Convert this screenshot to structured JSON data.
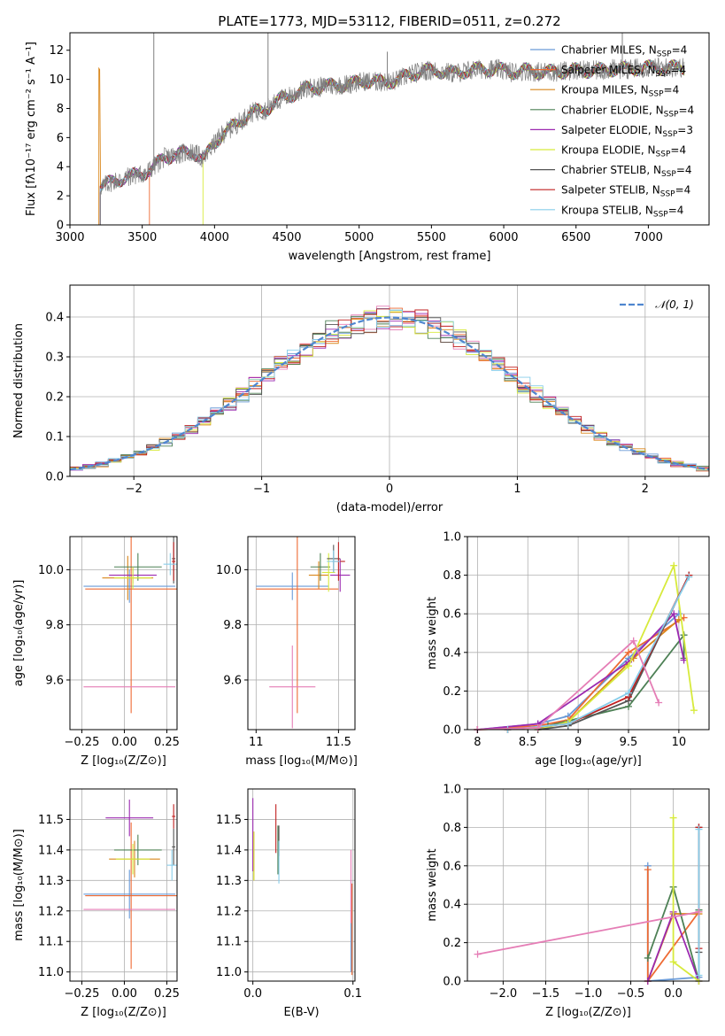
{
  "chart_data": [
    {
      "panel": "spectrum",
      "type": "line",
      "title": "PLATE=1773, MJD=53112, FIBERID=0511, z=0.272",
      "xlabel": "wavelength [Angstrom, rest frame]",
      "ylabel": "Flux [fλ10⁻¹⁷ erg cm⁻² s⁻¹ A⁻¹]",
      "xlim": [
        3000,
        7420
      ],
      "ylim": [
        0,
        13.2
      ],
      "xticks": [
        3000,
        3500,
        4000,
        4500,
        5000,
        5500,
        6000,
        6500,
        7000
      ],
      "yticks": [
        0,
        2,
        4,
        6,
        8,
        10,
        12
      ],
      "grid": false,
      "legend_loc": "right",
      "data_curve": {
        "name": "data",
        "color": "#808080",
        "start": 3210,
        "end": 7250,
        "points": [
          [
            3210,
            2.6
          ],
          [
            3300,
            3.0
          ],
          [
            3400,
            3.3
          ],
          [
            3500,
            3.5
          ],
          [
            3570,
            3.9
          ],
          [
            3650,
            4.6
          ],
          [
            3750,
            4.9
          ],
          [
            3850,
            5.0
          ],
          [
            3930,
            4.5
          ],
          [
            3970,
            5.2
          ],
          [
            4050,
            6.2
          ],
          [
            4150,
            6.9
          ],
          [
            4250,
            7.7
          ],
          [
            4350,
            7.9
          ],
          [
            4450,
            8.6
          ],
          [
            4550,
            9.0
          ],
          [
            4650,
            9.4
          ],
          [
            4750,
            9.5
          ],
          [
            4850,
            9.6
          ],
          [
            4950,
            9.7
          ],
          [
            5050,
            9.9
          ],
          [
            5150,
            9.8
          ],
          [
            5250,
            9.9
          ],
          [
            5350,
            10.3
          ],
          [
            5450,
            10.6
          ],
          [
            5550,
            10.6
          ],
          [
            5650,
            10.4
          ],
          [
            5750,
            10.6
          ],
          [
            5850,
            10.7
          ],
          [
            5950,
            10.7
          ],
          [
            6050,
            10.5
          ],
          [
            6150,
            10.6
          ],
          [
            6250,
            10.5
          ],
          [
            6350,
            10.5
          ],
          [
            6450,
            10.6
          ],
          [
            6550,
            10.6
          ],
          [
            6650,
            10.6
          ],
          [
            6750,
            10.7
          ],
          [
            6850,
            10.7
          ],
          [
            6950,
            10.8
          ],
          [
            7050,
            10.8
          ],
          [
            7150,
            10.8
          ],
          [
            7250,
            10.8
          ]
        ],
        "spikes": [
          [
            3580,
            14
          ],
          [
            4370,
            14
          ],
          [
            5195,
            11.9
          ],
          [
            6820,
            14
          ]
        ]
      },
      "model_starts": [
        3210,
        3550,
        3200,
        3210,
        3210,
        3920,
        3210,
        3210,
        3210
      ]
    },
    {
      "panel": "residual-histogram",
      "type": "line",
      "xlabel": "(data-model)/error",
      "ylabel": "Normed distribution",
      "xlim": [
        -2.5,
        2.5
      ],
      "ylim": [
        0,
        0.48
      ],
      "xticks": [
        -2,
        -1,
        0,
        1,
        2
      ],
      "yticks": [
        0.0,
        0.1,
        0.2,
        0.3,
        0.4
      ],
      "grid": true,
      "legend_loc": "upper right",
      "gaussian": {
        "name": "𝒩(0, 1)",
        "mu": 0,
        "sigma": 1
      },
      "bin_width": 0.1,
      "bin_start": -2.5
    },
    {
      "panel": "age-vs-Z",
      "type": "scatter",
      "xlabel": "Z [log₁₀(Z/Z⊙)]",
      "ylabel": "age  [log₁₀(age/yr)]",
      "xlim": [
        -0.32,
        0.31
      ],
      "ylim": [
        9.42,
        10.12
      ],
      "xticks": [
        -0.25,
        0.0,
        0.25
      ],
      "xticklabels": [
        "−0.25",
        "0.00",
        "0.25"
      ],
      "yticks": [
        9.6,
        9.8,
        10.0
      ],
      "grid": true,
      "points": [
        {
          "model": 0,
          "x": 0.03,
          "y": 9.94,
          "xerr": 0.27,
          "yerr": 0.06
        },
        {
          "model": 1,
          "x": 0.04,
          "y": 9.93,
          "xerr": 0.27,
          "yerr": 0.45
        },
        {
          "model": 2,
          "x": 0.02,
          "y": 9.97,
          "xerr": 0.15,
          "yerr": 0.08
        },
        {
          "model": 3,
          "x": 0.08,
          "y": 10.01,
          "xerr": 0.14,
          "yerr": 0.05
        },
        {
          "model": 4,
          "x": 0.05,
          "y": 9.98,
          "xerr": 0.14,
          "yerr": 0.03
        },
        {
          "model": 5,
          "x": 0.05,
          "y": 9.97,
          "xerr": 0.11,
          "yerr": 0.04
        },
        {
          "model": 6,
          "x": 0.29,
          "y": 10.04,
          "xerr": 0.01,
          "yerr": 0.09
        },
        {
          "model": 7,
          "x": 0.29,
          "y": 10.03,
          "xerr": 0.01,
          "yerr": 0.07
        },
        {
          "model": 8,
          "x": 0.27,
          "y": 10.02,
          "xerr": 0.04,
          "yerr": 0.04
        },
        {
          "model": 9,
          "x": 0.03,
          "y": 9.575,
          "xerr": 0.27,
          "yerr": 0.0
        }
      ]
    },
    {
      "panel": "age-vs-mass",
      "type": "scatter",
      "xlabel": "mass [log₁₀(M/M⊙)]",
      "xlim": [
        10.95,
        11.6
      ],
      "ylim": [
        9.42,
        10.12
      ],
      "xticks": [
        11.0,
        11.5
      ],
      "yticks": [
        9.6,
        9.8,
        10.0
      ],
      "grid": true,
      "points": [
        {
          "model": 0,
          "x": 11.22,
          "y": 9.94,
          "xerr": 0.22,
          "yerr": 0.05
        },
        {
          "model": 1,
          "x": 11.25,
          "y": 9.93,
          "xerr": 0.25,
          "yerr": 0.45
        },
        {
          "model": 2,
          "x": 11.38,
          "y": 9.98,
          "xerr": 0.06,
          "yerr": 0.05
        },
        {
          "model": 3,
          "x": 11.39,
          "y": 10.01,
          "xerr": 0.06,
          "yerr": 0.05
        },
        {
          "model": 4,
          "x": 11.51,
          "y": 9.98,
          "xerr": 0.06,
          "yerr": 0.06
        },
        {
          "model": 5,
          "x": 11.44,
          "y": 9.99,
          "xerr": 0.04,
          "yerr": 0.07
        },
        {
          "model": 6,
          "x": 11.47,
          "y": 10.04,
          "xerr": 0.04,
          "yerr": 0.05
        },
        {
          "model": 7,
          "x": 11.5,
          "y": 10.03,
          "xerr": 0.04,
          "yerr": 0.07
        },
        {
          "model": 8,
          "x": 11.47,
          "y": 10.03,
          "xerr": 0.04,
          "yerr": 0.04
        },
        {
          "model": 9,
          "x": 11.22,
          "y": 9.575,
          "xerr": 0.14,
          "yerr": 0.15
        }
      ]
    },
    {
      "panel": "weight-vs-age",
      "type": "line",
      "xlabel": "age  [log₁₀(age/yr)]",
      "ylabel": "mass weight",
      "xlim": [
        7.9,
        10.3
      ],
      "ylim": [
        0,
        1.0
      ],
      "xticks": [
        8.0,
        8.5,
        9.0,
        9.5,
        10.0
      ],
      "yticks": [
        0.0,
        0.2,
        0.4,
        0.6,
        0.8,
        1.0
      ],
      "grid": true,
      "series": [
        {
          "model": 0,
          "x": [
            8.0,
            8.6,
            8.9,
            9.5,
            10.0
          ],
          "y": [
            0.0,
            0.03,
            0.07,
            0.37,
            0.6
          ]
        },
        {
          "model": 1,
          "x": [
            8.0,
            8.6,
            8.9,
            9.5,
            10.05
          ],
          "y": [
            0.0,
            0.02,
            0.05,
            0.4,
            0.58
          ]
        },
        {
          "model": 2,
          "x": [
            8.0,
            8.6,
            8.9,
            9.55,
            10.0
          ],
          "y": [
            0.0,
            0.01,
            0.04,
            0.37,
            0.57
          ]
        },
        {
          "model": 3,
          "x": [
            8.3,
            8.7,
            9.5,
            10.05,
            10.05
          ],
          "y": [
            0.0,
            0.02,
            0.12,
            0.49,
            0.37
          ]
        },
        {
          "model": 4,
          "x": [
            8.0,
            8.6,
            9.5,
            9.95,
            10.05
          ],
          "y": [
            0.0,
            0.03,
            0.35,
            0.6,
            0.36
          ]
        },
        {
          "model": 5,
          "x": [
            8.6,
            8.9,
            9.5,
            9.95,
            10.15
          ],
          "y": [
            0.0,
            0.04,
            0.33,
            0.85,
            0.1
          ]
        },
        {
          "model": 6,
          "x": [
            8.6,
            8.9,
            9.5,
            10.1
          ],
          "y": [
            0.0,
            0.02,
            0.15,
            0.8
          ]
        },
        {
          "model": 7,
          "x": [
            8.3,
            8.9,
            9.5,
            10.1
          ],
          "y": [
            0.0,
            0.03,
            0.17,
            0.8
          ]
        },
        {
          "model": 8,
          "x": [
            8.3,
            8.9,
            9.5,
            10.1
          ],
          "y": [
            0.0,
            0.03,
            0.19,
            0.79
          ]
        },
        {
          "model": 9,
          "x": [
            8.0,
            8.6,
            9.55,
            9.8
          ],
          "y": [
            0.0,
            0.01,
            0.46,
            0.14
          ]
        }
      ]
    },
    {
      "panel": "mass-vs-Z",
      "type": "scatter",
      "xlabel": "Z [log₁₀(Z/Z⊙)]",
      "ylabel": "mass [log₁₀(M/M⊙)]",
      "xlim": [
        -0.32,
        0.31
      ],
      "ylim": [
        10.97,
        11.6
      ],
      "xticks": [
        -0.25,
        0.0,
        0.25
      ],
      "xticklabels": [
        "−0.25",
        "0.00",
        "0.25"
      ],
      "yticks": [
        11.0,
        11.1,
        11.2,
        11.3,
        11.4,
        11.5
      ],
      "grid": true,
      "points": [
        {
          "model": 0,
          "x": 0.03,
          "y": 11.255,
          "xerr": 0.27,
          "yerr": 0.08
        },
        {
          "model": 1,
          "x": 0.04,
          "y": 11.25,
          "xerr": 0.27,
          "yerr": 0.24
        },
        {
          "model": 2,
          "x": 0.06,
          "y": 11.37,
          "xerr": 0.15,
          "yerr": 0.06
        },
        {
          "model": 3,
          "x": 0.08,
          "y": 11.4,
          "xerr": 0.14,
          "yerr": 0.05
        },
        {
          "model": 4,
          "x": 0.03,
          "y": 11.505,
          "xerr": 0.14,
          "yerr": 0.06
        },
        {
          "model": 5,
          "x": 0.05,
          "y": 11.37,
          "xerr": 0.1,
          "yerr": 0.05
        },
        {
          "model": 6,
          "x": 0.29,
          "y": 11.41,
          "xerr": 0.01,
          "yerr": 0.06
        },
        {
          "model": 7,
          "x": 0.29,
          "y": 11.51,
          "xerr": 0.01,
          "yerr": 0.04
        },
        {
          "model": 8,
          "x": 0.28,
          "y": 11.35,
          "xerr": 0.03,
          "yerr": 0.05
        },
        {
          "model": 9,
          "x": 0.03,
          "y": 11.205,
          "xerr": 0.27,
          "yerr": 0.0
        }
      ]
    },
    {
      "panel": "mass-vs-EBV",
      "type": "scatter",
      "xlabel": "E(B-V)",
      "xlim": [
        -0.005,
        0.102
      ],
      "ylim": [
        10.97,
        11.6
      ],
      "xticks": [
        0.0,
        0.1
      ],
      "xticklabels": [
        "0.0",
        "0.1"
      ],
      "yticks": [
        11.0,
        11.1,
        11.2,
        11.3,
        11.4,
        11.5
      ],
      "grid": true,
      "points": [
        {
          "model": 0,
          "x": 0.098,
          "y": 11.15,
          "xerr": 0.0,
          "yerr": 0.15
        },
        {
          "model": 1,
          "x": 0.099,
          "y": 11.14,
          "xerr": 0.0,
          "yerr": 0.15
        },
        {
          "model": 2,
          "x": 0.001,
          "y": 11.38,
          "xerr": 0.0,
          "yerr": 0.08
        },
        {
          "model": 3,
          "x": 0.025,
          "y": 11.4,
          "xerr": 0.0,
          "yerr": 0.08
        },
        {
          "model": 4,
          "x": 0.0,
          "y": 11.45,
          "xerr": 0.0,
          "yerr": 0.12
        },
        {
          "model": 5,
          "x": 0.001,
          "y": 11.38,
          "xerr": 0.0,
          "yerr": 0.08
        },
        {
          "model": 6,
          "x": 0.026,
          "y": 11.43,
          "xerr": 0.0,
          "yerr": 0.05
        },
        {
          "model": 7,
          "x": 0.023,
          "y": 11.47,
          "xerr": 0.0,
          "yerr": 0.08
        },
        {
          "model": 8,
          "x": 0.026,
          "y": 11.36,
          "xerr": 0.0,
          "yerr": 0.07
        },
        {
          "model": 9,
          "x": 0.098,
          "y": 11.28,
          "xerr": 0.0,
          "yerr": 0.12
        }
      ]
    },
    {
      "panel": "weight-vs-Z",
      "type": "line",
      "xlabel": "Z [log₁₀(Z/Z⊙)]",
      "ylabel": "mass weight",
      "xlim": [
        -2.42,
        0.42
      ],
      "ylim": [
        0,
        1.0
      ],
      "xticks": [
        -2.0,
        -1.5,
        -1.0,
        -0.5,
        0.0
      ],
      "xticklabels": [
        "−2.0",
        "−1.5",
        "−1.0",
        "−0.5",
        "0.0"
      ],
      "yticks": [
        0.0,
        0.2,
        0.4,
        0.6,
        0.8,
        1.0
      ],
      "grid": true,
      "series": [
        {
          "model": 0,
          "x": [
            -0.3,
            -0.3,
            0.3
          ],
          "y": [
            0.6,
            0.0,
            0.02
          ]
        },
        {
          "model": 1,
          "x": [
            -0.3,
            -0.3,
            0.3
          ],
          "y": [
            0.58,
            0.0,
            0.36
          ]
        },
        {
          "model": 2,
          "x": [
            -0.3,
            0.0,
            0.3
          ],
          "y": [
            0.0,
            0.35,
            0.35
          ]
        },
        {
          "model": 3,
          "x": [
            -0.3,
            0.0,
            0.3,
            0.3
          ],
          "y": [
            0.12,
            0.49,
            0.0,
            0.37
          ]
        },
        {
          "model": 4,
          "x": [
            -0.3,
            0.0,
            0.3
          ],
          "y": [
            0.0,
            0.36,
            0.0
          ]
        },
        {
          "model": 5,
          "x": [
            0.0,
            0.0,
            0.3
          ],
          "y": [
            0.85,
            0.1,
            0.0
          ]
        },
        {
          "model": 6,
          "x": [
            0.3,
            0.3
          ],
          "y": [
            0.8,
            0.15
          ]
        },
        {
          "model": 7,
          "x": [
            0.3,
            0.3
          ],
          "y": [
            0.8,
            0.17
          ]
        },
        {
          "model": 8,
          "x": [
            0.3,
            0.3
          ],
          "y": [
            0.79,
            0.03
          ]
        },
        {
          "model": 9,
          "x": [
            -2.3,
            0.3
          ],
          "y": [
            0.14,
            0.36
          ]
        }
      ]
    }
  ],
  "models": [
    {
      "name": "Chabrier MILES",
      "nssp": "4",
      "color": "#6a9bd8"
    },
    {
      "name": "Salpeter MILES",
      "nssp": "4",
      "color": "#ee6a33"
    },
    {
      "name": "Kroupa MILES",
      "nssp": "4",
      "color": "#d9861a"
    },
    {
      "name": "Chabrier ELODIE",
      "nssp": "4",
      "color": "#4d8055"
    },
    {
      "name": "Salpeter ELODIE",
      "nssp": "3",
      "color": "#9b29b0"
    },
    {
      "name": "Kroupa ELODIE",
      "nssp": "4",
      "color": "#d7ea3c"
    },
    {
      "name": "Chabrier STELIB",
      "nssp": "4",
      "color": "#555555"
    },
    {
      "name": "Salpeter STELIB",
      "nssp": "4",
      "color": "#c02020"
    },
    {
      "name": "Kroupa STELIB",
      "nssp": "4",
      "color": "#87cdea"
    },
    {
      "name": "",
      "nssp": "",
      "color": "#e57eb6"
    }
  ],
  "legend_nssp_prefix": "N",
  "legend_nssp_sub": "SSP"
}
